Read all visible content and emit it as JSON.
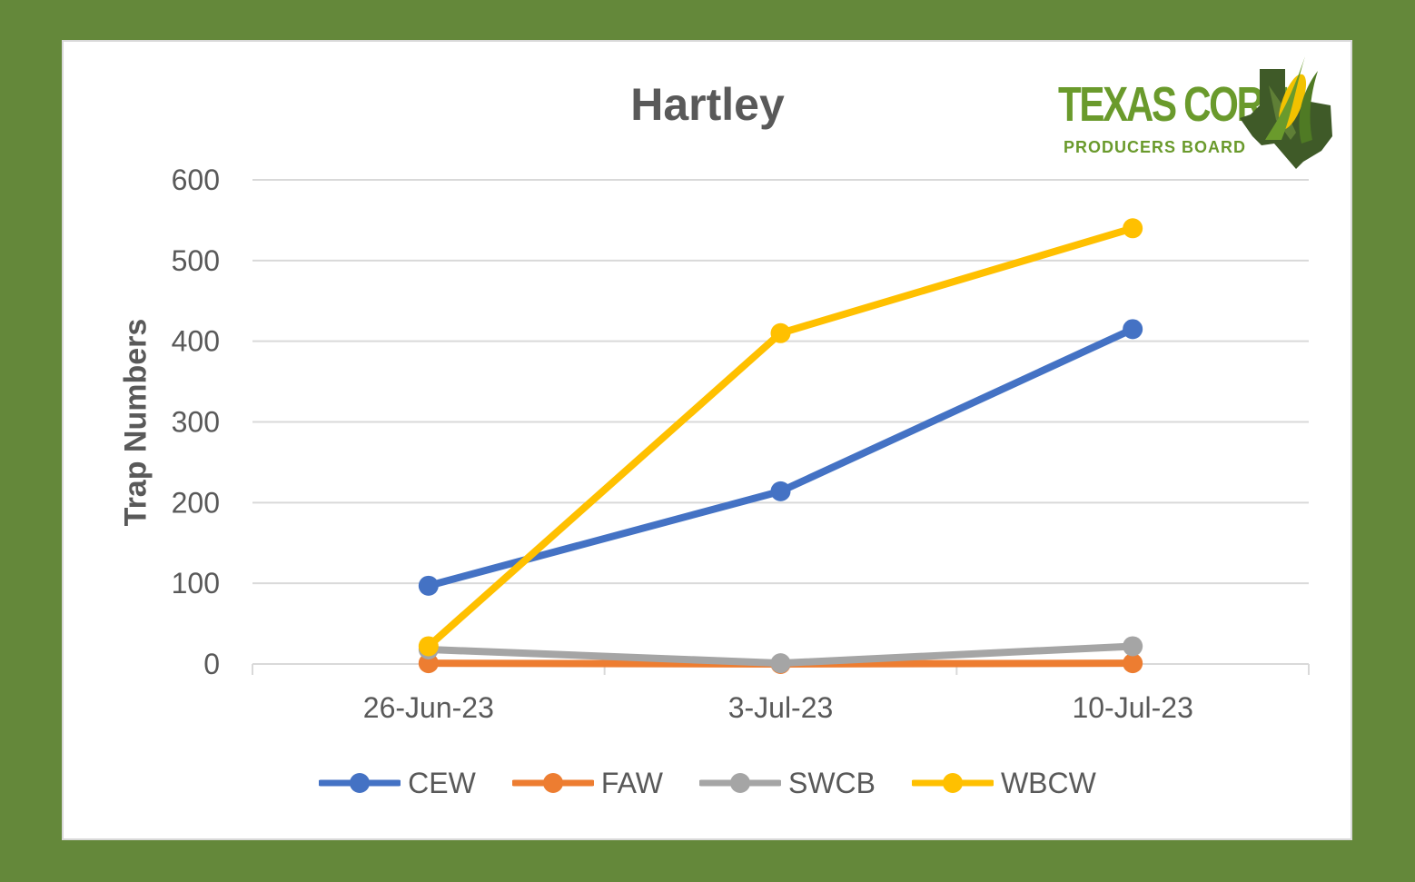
{
  "logo": {
    "line1": "TEXAS CORN",
    "line2": "PRODUCERS BOARD"
  },
  "colors": {
    "frame": "#64883a",
    "CEW": "#4472c4",
    "FAW": "#ed7d31",
    "SWCB": "#a5a5a5",
    "WBCW": "#ffc000"
  },
  "chart_data": {
    "type": "line",
    "title": "Hartley",
    "xlabel": "",
    "ylabel": "Trap Numbers",
    "categories": [
      "26-Jun-23",
      "3-Jul-23",
      "10-Jul-23"
    ],
    "ylim": [
      0,
      600
    ],
    "yticks": [
      0,
      100,
      200,
      300,
      400,
      500,
      600
    ],
    "grid": true,
    "legend_position": "bottom",
    "series": [
      {
        "name": "CEW",
        "values": [
          97,
          214,
          415
        ]
      },
      {
        "name": "FAW",
        "values": [
          1,
          0,
          1
        ]
      },
      {
        "name": "SWCB",
        "values": [
          18,
          1,
          22
        ]
      },
      {
        "name": "WBCW",
        "values": [
          22,
          410,
          540
        ]
      }
    ]
  }
}
